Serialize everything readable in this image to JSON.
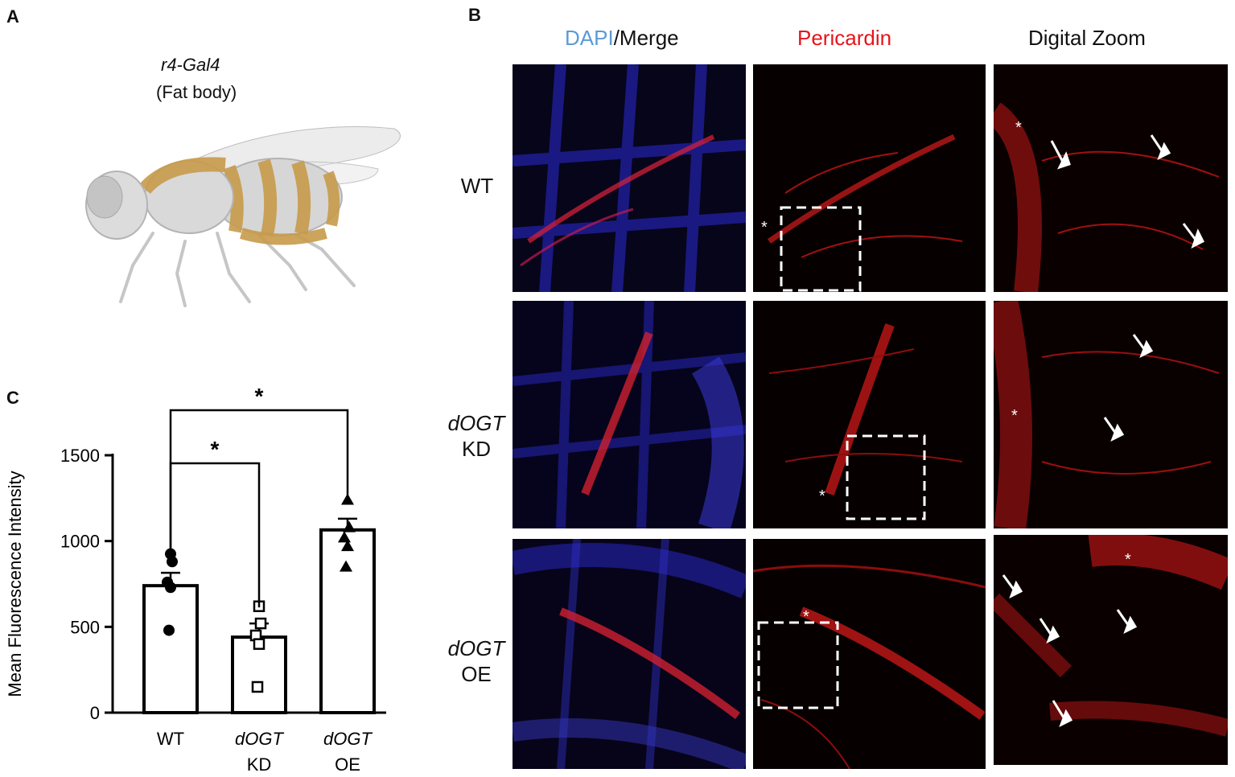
{
  "panels": {
    "a": {
      "letter": "A",
      "driver": "r4-Gal4",
      "tissue": "(Fat body)"
    },
    "b": {
      "letter": "B",
      "columns": {
        "dapi": "DAPI",
        "merge": "/Merge",
        "pericardin": "Pericardin",
        "zoom": "Digital Zoom"
      },
      "rows": [
        {
          "italic": "",
          "plain": "WT"
        },
        {
          "italic": "dOGT",
          "plain": "KD"
        },
        {
          "italic": "dOGT",
          "plain": "OE"
        }
      ],
      "marker_asterisk": "*"
    },
    "c": {
      "letter": "C"
    }
  },
  "colors": {
    "dapi_blue": "#5b9bd5",
    "pericardin_red": "#e8141a",
    "fat_body": "#c79a4a"
  },
  "chart_data": {
    "type": "bar",
    "ylabel": "Mean Fluorescence Intensity",
    "ylim": [
      0,
      1500
    ],
    "yticks": [
      0,
      500,
      1000,
      1500
    ],
    "categories": [
      {
        "italic": "",
        "plain": "WT"
      },
      {
        "italic": "dOGT",
        "plain": "KD"
      },
      {
        "italic": "dOGT",
        "plain": "OE"
      }
    ],
    "values": [
      740,
      440,
      1065
    ],
    "sem": [
      75,
      80,
      65
    ],
    "points": [
      [
        925,
        880,
        760,
        730,
        480
      ],
      [
        620,
        520,
        450,
        400,
        150
      ],
      [
        1240,
        1080,
        1020,
        970,
        850
      ]
    ],
    "markers": [
      "circle",
      "open-square",
      "triangle"
    ],
    "significance": [
      {
        "from": 0,
        "to": 1,
        "label": "*"
      },
      {
        "from": 0,
        "to": 2,
        "label": "*"
      }
    ]
  }
}
